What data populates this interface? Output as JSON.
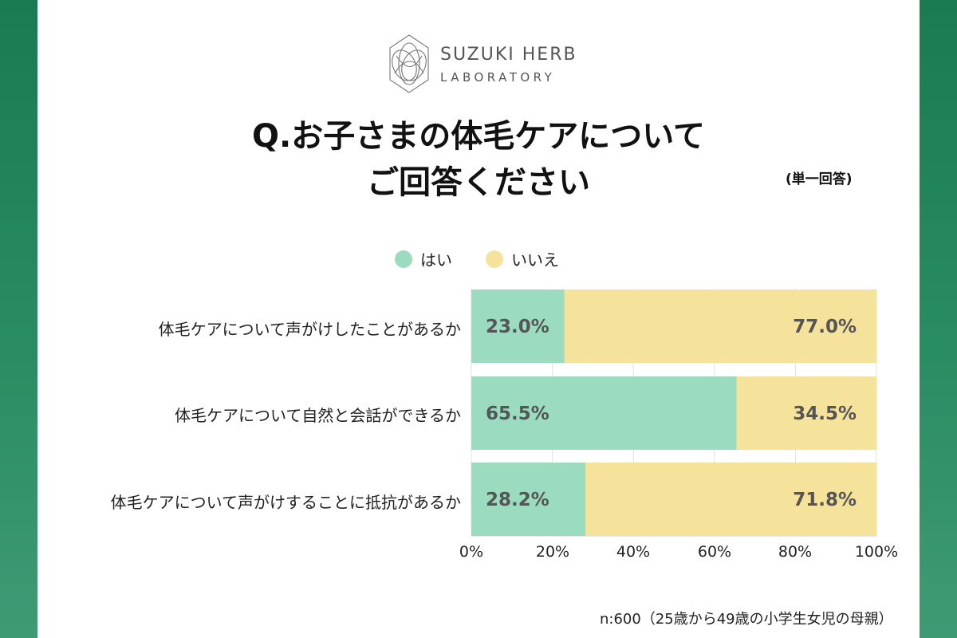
{
  "logo": {
    "line1": "SUZUKI HERB",
    "line2": "LABORATORY"
  },
  "title": {
    "line1": "Q.お子さまの体毛ケアについて",
    "line2": "ご回答ください"
  },
  "note": "(単一回答)",
  "footnote": "n:600（25歳から49歳の小学生女児の母親）",
  "colors": {
    "yes": "#9bdcc1",
    "no": "#f6e39b",
    "background": "#1a7a52"
  },
  "chart_data": {
    "type": "bar",
    "orientation": "horizontal",
    "stacked": true,
    "categories": [
      "体毛ケアについて声がけしたことがあるか",
      "体毛ケアについて自然と会話ができるか",
      "体毛ケアについて声がけすることに抵抗があるか"
    ],
    "series": [
      {
        "name": "はい",
        "values": [
          23.0,
          65.5,
          28.2
        ],
        "labels": [
          "23.0%",
          "65.5%",
          "28.2%"
        ]
      },
      {
        "name": "いいえ",
        "values": [
          77.0,
          34.5,
          71.8
        ],
        "labels": [
          "77.0%",
          "34.5%",
          "71.8%"
        ]
      }
    ],
    "xlim": [
      0,
      100
    ],
    "ticks": [
      "0%",
      "20%",
      "40%",
      "60%",
      "80%",
      "100%"
    ],
    "grid": true,
    "legend": "top"
  }
}
